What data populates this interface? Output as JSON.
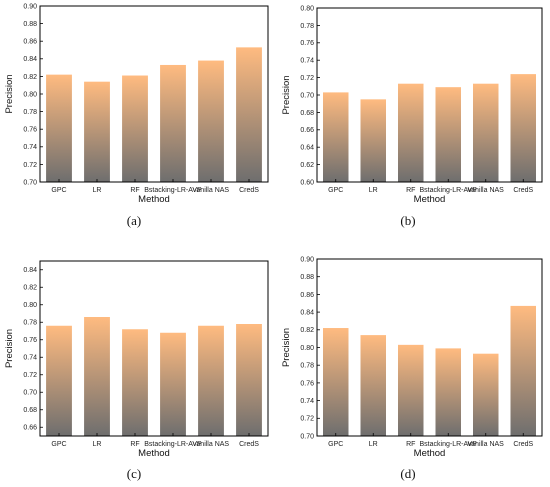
{
  "colors": {
    "bar_top": "#ffbb80",
    "bar_bottom": "#6e6e6e",
    "axis": "#000000"
  },
  "chart_data": [
    {
      "type": "bar",
      "caption": "(a)",
      "categories": [
        "GPC",
        "LR",
        "RF",
        "Bstacking-LR-AVP",
        "vanilla NAS",
        "CredS"
      ],
      "values": [
        0.822,
        0.814,
        0.821,
        0.833,
        0.838,
        0.853
      ],
      "xlabel": "Method",
      "ylabel": "Precision",
      "ylim": [
        0.7,
        0.9
      ],
      "yticks": [
        "0.70",
        "0.72",
        "0.74",
        "0.76",
        "0.78",
        "0.80",
        "0.82",
        "0.84",
        "0.86",
        "0.88",
        "0.90"
      ]
    },
    {
      "type": "bar",
      "caption": "(b)",
      "categories": [
        "GPC",
        "LR",
        "RF",
        "Bstacking-LR-AVP",
        "vanilla NAS",
        "CredS"
      ],
      "values": [
        0.703,
        0.695,
        0.713,
        0.709,
        0.713,
        0.724
      ],
      "xlabel": "Method",
      "ylabel": "Precision",
      "ylim": [
        0.6,
        0.8
      ],
      "yticks": [
        "0.60",
        "0.62",
        "0.64",
        "0.66",
        "0.68",
        "0.70",
        "0.72",
        "0.74",
        "0.76",
        "0.78",
        "0.80"
      ]
    },
    {
      "type": "bar",
      "caption": "(c)",
      "categories": [
        "GPC",
        "LR",
        "RF",
        "Bstacking-LR-AVP",
        "vanilla NAS",
        "CredS"
      ],
      "values": [
        0.776,
        0.786,
        0.772,
        0.768,
        0.776,
        0.778
      ],
      "xlabel": "Method",
      "ylabel": "Precision",
      "ylim": [
        0.65,
        0.85
      ],
      "yticks": [
        "0.66",
        "0.68",
        "0.70",
        "0.72",
        "0.74",
        "0.76",
        "0.78",
        "0.80",
        "0.82",
        "0.84"
      ]
    },
    {
      "type": "bar",
      "caption": "(d)",
      "categories": [
        "GPC",
        "LR",
        "RF",
        "Bstacking-LR-AVP",
        "vanilla NAS",
        "CredS"
      ],
      "values": [
        0.822,
        0.814,
        0.803,
        0.799,
        0.793,
        0.847
      ],
      "xlabel": "Method",
      "ylabel": "Precision",
      "ylim": [
        0.7,
        0.9
      ],
      "yticks": [
        "0.70",
        "0.72",
        "0.74",
        "0.76",
        "0.78",
        "0.80",
        "0.82",
        "0.84",
        "0.86",
        "0.88",
        "0.90"
      ]
    }
  ]
}
